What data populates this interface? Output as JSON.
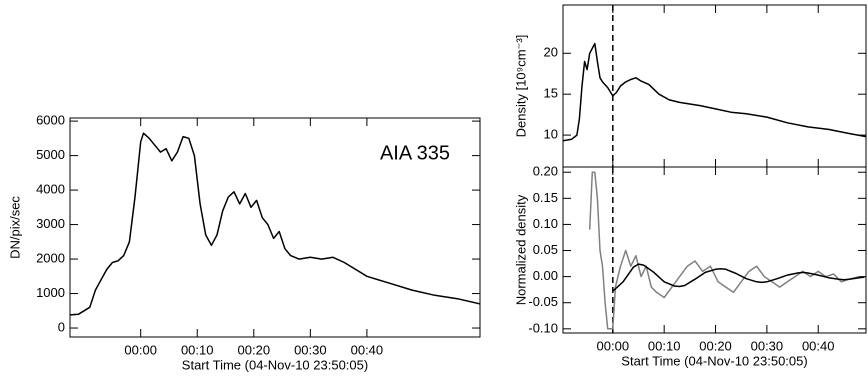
{
  "chart_data": [
    {
      "type": "line",
      "annotation": "AIA 335",
      "xlabel": "Start Time (04-Nov-10 23:50:05)",
      "ylabel": "DN/pix/sec",
      "xlim": [
        -12.5,
        60
      ],
      "ylim": [
        -260,
        6090
      ],
      "xticks": [
        {
          "value": 0,
          "label": "00:00"
        },
        {
          "value": 10,
          "label": "00:10"
        },
        {
          "value": 20,
          "label": "00:20"
        },
        {
          "value": 30,
          "label": "00:30"
        },
        {
          "value": 40,
          "label": "00:40"
        }
      ],
      "yticks": [
        0,
        1000,
        2000,
        3000,
        4000,
        5000,
        6000
      ],
      "series": [
        {
          "color": "#000000",
          "x": [
            -12.5,
            -11,
            -9,
            -8,
            -7,
            -6,
            -5,
            -4,
            -3,
            -2,
            -1,
            0,
            0.5,
            1.5,
            2.5,
            3.5,
            4.5,
            5.5,
            6.5,
            7.5,
            8.5,
            9.5,
            10.5,
            11.5,
            12.5,
            13.5,
            14.5,
            15.5,
            16.5,
            17.5,
            18.5,
            19.5,
            20.5,
            21.5,
            22.5,
            23.5,
            24.5,
            25.5,
            26.5,
            28,
            30,
            32,
            34,
            36,
            38,
            40,
            44,
            48,
            52,
            56,
            60
          ],
          "values": [
            380,
            400,
            600,
            1100,
            1400,
            1700,
            1900,
            1950,
            2100,
            2500,
            3800,
            5400,
            5650,
            5500,
            5300,
            5100,
            5200,
            4850,
            5100,
            5550,
            5500,
            5000,
            3600,
            2700,
            2400,
            2700,
            3400,
            3800,
            3950,
            3600,
            3900,
            3500,
            3700,
            3200,
            3000,
            2600,
            2800,
            2300,
            2100,
            2000,
            2050,
            2000,
            2050,
            1900,
            1700,
            1500,
            1300,
            1100,
            950,
            850,
            700
          ]
        }
      ]
    },
    {
      "type": "line",
      "ylabel": "Density [10⁹cm⁻³]",
      "show_xtick_labels": false,
      "xlim": [
        -9.7,
        49.3
      ],
      "ylim": [
        6.1,
        25.9
      ],
      "vlines": [
        0
      ],
      "xticks": [
        0,
        10,
        20,
        30,
        40
      ],
      "yticks": [
        10,
        15,
        20
      ],
      "series": [
        {
          "color": "#000000",
          "x": [
            -9.7,
            -8,
            -7,
            -6.5,
            -6,
            -5.5,
            -5,
            -4.5,
            -3.5,
            -3,
            -2.5,
            -2,
            -1,
            0,
            0.7,
            1.5,
            2.5,
            3.5,
            4.5,
            5.5,
            7,
            9,
            11,
            13,
            15,
            17,
            20,
            23,
            26,
            30,
            34,
            38,
            42,
            46,
            49.3
          ],
          "values": [
            9.3,
            9.5,
            10,
            12,
            16,
            19,
            18,
            20,
            21.2,
            19,
            17,
            16.5,
            15.8,
            14.8,
            15.2,
            16,
            16.5,
            16.8,
            17,
            16.6,
            16.2,
            15,
            14.3,
            14,
            13.8,
            13.6,
            13.2,
            12.8,
            12.6,
            12.2,
            11.5,
            11,
            10.7,
            10.2,
            9.8
          ]
        }
      ]
    },
    {
      "type": "line",
      "xlabel": "Start Time (04-Nov-10 23:50:05)",
      "ylabel": "Normalized density",
      "xlim": [
        -9.7,
        49.3
      ],
      "ylim": [
        -0.108,
        0.21
      ],
      "vlines": [
        0
      ],
      "xticks": [
        {
          "value": 0,
          "label": "00:00"
        },
        {
          "value": 10,
          "label": "00:10"
        },
        {
          "value": 20,
          "label": "00:20"
        },
        {
          "value": 30,
          "label": "00:30"
        },
        {
          "value": 40,
          "label": "00:40"
        }
      ],
      "yticks": [
        {
          "value": 0.2,
          "label": "0.20"
        },
        0.15,
        {
          "value": 0.1,
          "label": "0.10"
        },
        0.05,
        {
          "value": 0,
          "label": "0.00"
        },
        -0.05,
        {
          "value": -0.1,
          "label": "-0.10"
        }
      ],
      "series": [
        {
          "color": "#808080",
          "x": [
            -4.5,
            -4,
            -3.5,
            -3,
            -2.5,
            -2,
            -1.5,
            -1,
            0,
            0.5,
            1.5,
            2.5,
            3.5,
            4.5,
            5.5,
            6.5,
            7.5,
            8.5,
            10,
            11.5,
            13,
            14.5,
            16,
            17.5,
            19,
            20.5,
            22,
            23.5,
            25,
            26.5,
            28,
            29.5,
            31,
            32.5,
            34,
            35.5,
            37,
            38.5,
            40,
            41.5,
            43,
            44.5,
            46,
            48
          ],
          "values": [
            0.09,
            0.2,
            0.2,
            0.15,
            0.05,
            0.02,
            -0.05,
            -0.1,
            -0.1,
            -0.02,
            0.02,
            0.05,
            0.02,
            0.04,
            0.0,
            0.02,
            -0.02,
            -0.03,
            -0.04,
            -0.02,
            0.0,
            0.02,
            0.03,
            0.01,
            0.02,
            -0.01,
            -0.02,
            -0.03,
            -0.01,
            0.01,
            0.02,
            0.0,
            -0.01,
            -0.02,
            -0.01,
            0.0,
            0.01,
            0.0,
            0.01,
            0.0,
            0.005,
            -0.01,
            -0.005,
            0.0
          ]
        },
        {
          "color": "#000000",
          "x": [
            0,
            2,
            4,
            5,
            6,
            8,
            10,
            12,
            13,
            14,
            16,
            18,
            20,
            21,
            22,
            24,
            26,
            28,
            29,
            30,
            32,
            34,
            36,
            37,
            38,
            40,
            42,
            44,
            45,
            46,
            48,
            49
          ],
          "values": [
            -0.028,
            -0.01,
            0.018,
            0.024,
            0.022,
            0.008,
            -0.01,
            -0.018,
            -0.019,
            -0.017,
            -0.005,
            0.008,
            0.014,
            0.015,
            0.014,
            0.006,
            -0.004,
            -0.01,
            -0.011,
            -0.01,
            -0.004,
            0.003,
            0.007,
            0.008,
            0.007,
            0.003,
            -0.002,
            -0.005,
            -0.006,
            -0.005,
            -0.002,
            -0.001
          ]
        }
      ]
    }
  ]
}
